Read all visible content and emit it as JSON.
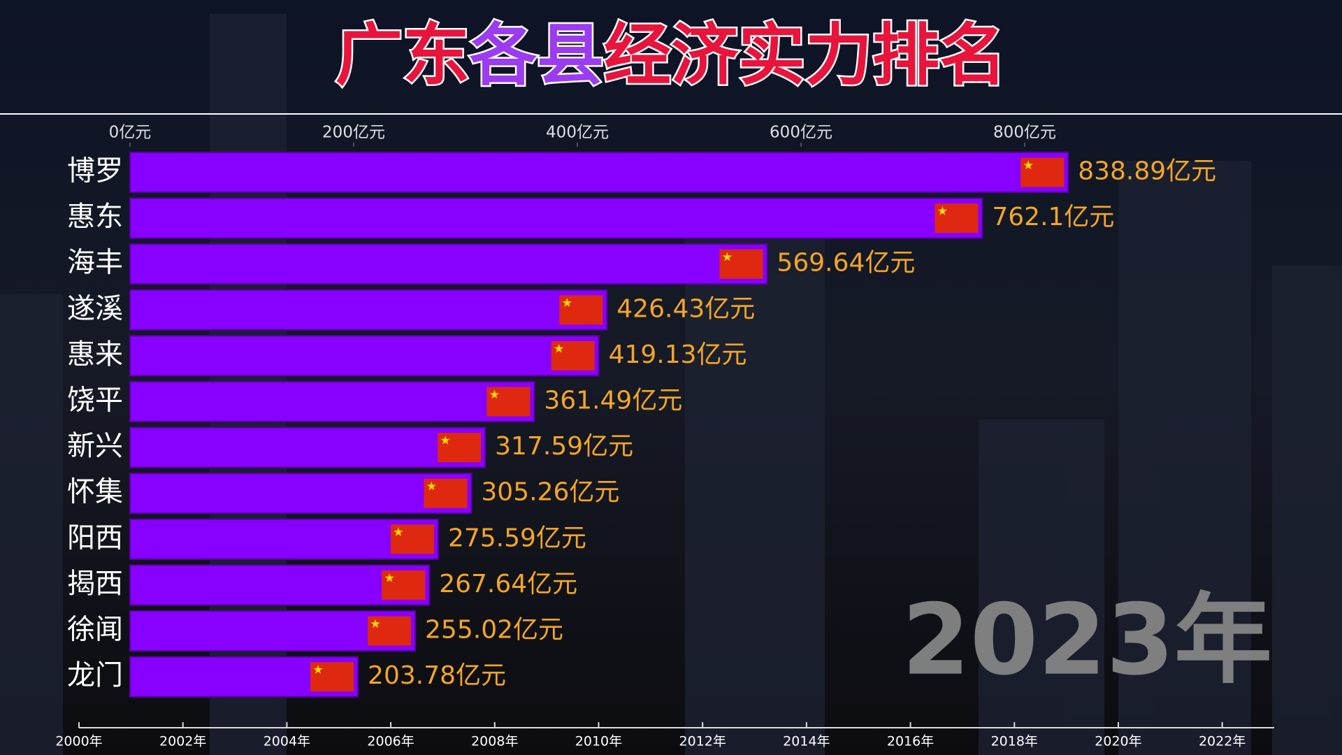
{
  "chart_data": {
    "type": "bar",
    "orientation": "horizontal",
    "title": [
      {
        "text": "广东",
        "color": "#e8143c"
      },
      {
        "text": "各县",
        "color": "#9b3cf0"
      },
      {
        "text": "经济实力排名",
        "color": "#e8143c"
      }
    ],
    "categories": [
      "博罗",
      "惠东",
      "海丰",
      "遂溪",
      "惠来",
      "饶平",
      "新兴",
      "怀集",
      "阳西",
      "揭西",
      "徐闻",
      "龙门"
    ],
    "values": [
      838.89,
      762.1,
      569.64,
      426.43,
      419.13,
      361.49,
      317.59,
      305.26,
      275.59,
      267.64,
      255.02,
      203.78
    ],
    "value_labels": [
      "838.89亿元",
      "762.1亿元",
      "569.64亿元",
      "426.43亿元",
      "419.13亿元",
      "361.49亿元",
      "317.59亿元",
      "305.26亿元",
      "275.59亿元",
      "267.64亿元",
      "255.02亿元",
      "203.78亿元"
    ],
    "color": "#8800ff",
    "xlim": [
      0,
      1000
    ],
    "xticks": [
      {
        "value": 0,
        "label": "0亿元"
      },
      {
        "value": 200,
        "label": "200亿元"
      },
      {
        "value": 400,
        "label": "400亿元"
      },
      {
        "value": 600,
        "label": "600亿元"
      },
      {
        "value": 800,
        "label": "800亿元"
      }
    ],
    "annotation": "2023年",
    "timeline": {
      "lim": [
        2000,
        2023
      ],
      "ticks": [
        {
          "value": 2000,
          "label": "2000年"
        },
        {
          "value": 2002,
          "label": "2002年"
        },
        {
          "value": 2004,
          "label": "2004年"
        },
        {
          "value": 2006,
          "label": "2006年"
        },
        {
          "value": 2008,
          "label": "2008年"
        },
        {
          "value": 2010,
          "label": "2010年"
        },
        {
          "value": 2012,
          "label": "2012年"
        },
        {
          "value": 2014,
          "label": "2014年"
        },
        {
          "value": 2016,
          "label": "2016年"
        },
        {
          "value": 2018,
          "label": "2018年"
        },
        {
          "value": 2020,
          "label": "2020年"
        },
        {
          "value": 2022,
          "label": "2022年"
        }
      ]
    }
  }
}
